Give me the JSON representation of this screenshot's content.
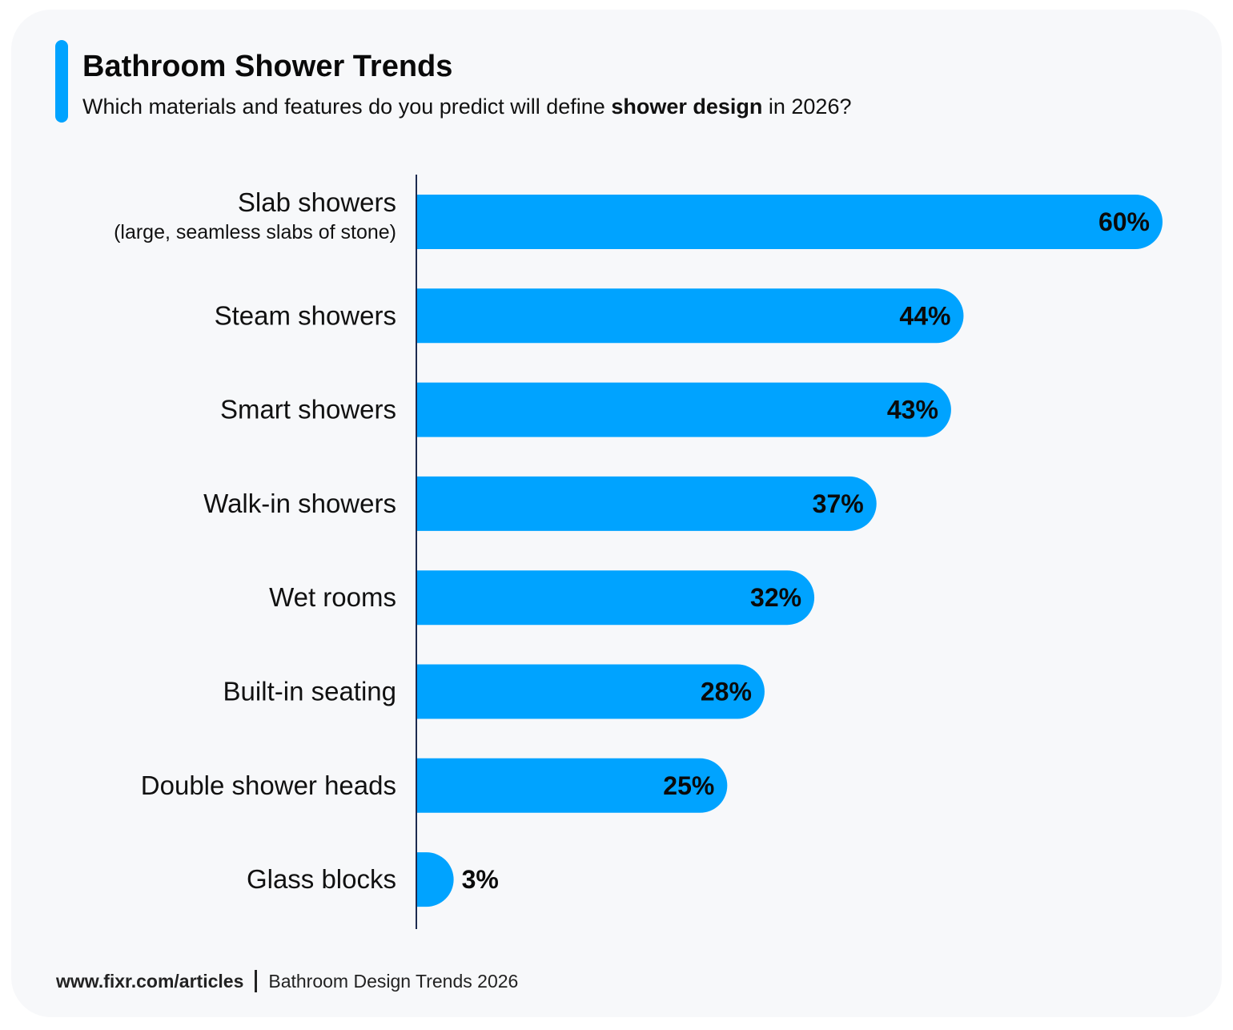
{
  "header": {
    "title": "Bathroom Shower Trends",
    "subtitle_pre": "Which materials and features do you predict will define ",
    "subtitle_bold": "shower design",
    "subtitle_post": " in 2026?"
  },
  "chart_data": {
    "type": "bar",
    "orientation": "horizontal",
    "categories": [
      "Slab showers",
      "Steam showers",
      "Smart showers",
      "Walk-in showers",
      "Wet rooms",
      "Built-in seating",
      "Double shower heads",
      "Glass blocks"
    ],
    "category_sublabels": [
      "(large, seamless slabs of stone)",
      "",
      "",
      "",
      "",
      "",
      "",
      ""
    ],
    "values": [
      60,
      44,
      43,
      37,
      32,
      28,
      25,
      3
    ],
    "value_labels": [
      "60%",
      "44%",
      "43%",
      "37%",
      "32%",
      "28%",
      "25%",
      "3%"
    ],
    "unit": "%",
    "xlim": [
      0,
      60
    ],
    "grid": false,
    "bar_color": "#00a3ff",
    "accent_color": "#00a3ff"
  },
  "footer": {
    "url": "www.fixr.com/articles",
    "source": "Bathroom Design Trends 2026"
  }
}
